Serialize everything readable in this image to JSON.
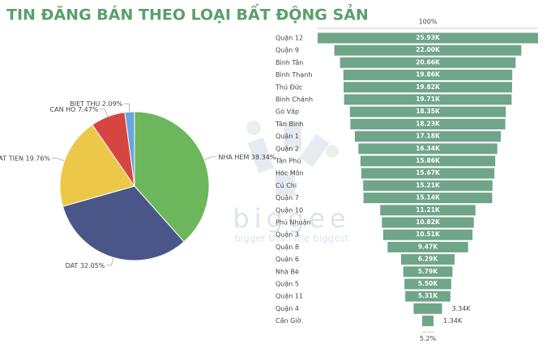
{
  "title": "TIN ĐĂNG BÁN THEO LOẠI BẤT ĐỘNG SẢN",
  "watermark": {
    "brand": "biggee",
    "slogan": "bigger than the biggest"
  },
  "chart_data": [
    {
      "type": "pie",
      "categories": [
        "NHA HEM",
        "DAT",
        "NHA MAT TIEN",
        "CAN HO",
        "BIET THU"
      ],
      "values": [
        38.34,
        32.05,
        19.76,
        7.47,
        2.09
      ],
      "value_labels": [
        "38.34%",
        "32.05%",
        "19.76%",
        "7.47%",
        "2.09%"
      ],
      "colors": [
        "#6cb75c",
        "#4a5688",
        "#ecc748",
        "#d4463f",
        "#6aa6de"
      ]
    },
    {
      "type": "funnel",
      "top_label": "100%",
      "bottom_label": "5.2%",
      "color": "#6fa588",
      "categories": [
        "Quận 12",
        "Quận 9",
        "Bình Tân",
        "Bình Thạnh",
        "Thủ Đức",
        "Bình Chánh",
        "Gò Vấp",
        "Tân Bình",
        "Quận 1",
        "Quận 2",
        "Tân Phú",
        "Hóc Môn",
        "Củ Chi",
        "Quận 7",
        "Quận 10",
        "Phú Nhuận",
        "Quận 3",
        "Quận 8",
        "Quận 6",
        "Nhà Bè",
        "Quận 5",
        "Quận 11",
        "Quận 4",
        "Cần Giờ"
      ],
      "values": [
        25930,
        22000,
        20660,
        19860,
        19820,
        19710,
        18350,
        18230,
        17180,
        16340,
        15860,
        15670,
        15210,
        15140,
        11210,
        10820,
        10510,
        9470,
        6290,
        5790,
        5500,
        5310,
        3340,
        1340
      ],
      "value_labels": [
        "25.93K",
        "22.00K",
        "20.66K",
        "19.86K",
        "19.82K",
        "19.71K",
        "18.35K",
        "18.23K",
        "17.18K",
        "16.34K",
        "15.86K",
        "15.67K",
        "15.21K",
        "15.14K",
        "11.21K",
        "10.82K",
        "10.51K",
        "9.47K",
        "6.29K",
        "5.79K",
        "5.50K",
        "5.31K",
        "3.34K",
        "1.34K"
      ]
    }
  ]
}
